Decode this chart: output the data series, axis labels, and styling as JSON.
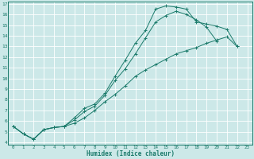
{
  "xlabel": "Humidex (Indice chaleur)",
  "bg_color": "#cce8e8",
  "grid_color": "#ffffff",
  "line_color": "#1a7a6a",
  "xlim": [
    -0.5,
    23.5
  ],
  "ylim": [
    3.8,
    17.2
  ],
  "yticks": [
    4,
    5,
    6,
    7,
    8,
    9,
    10,
    11,
    12,
    13,
    14,
    15,
    16,
    17
  ],
  "xticks": [
    0,
    1,
    2,
    3,
    4,
    5,
    6,
    7,
    8,
    9,
    10,
    11,
    12,
    13,
    14,
    15,
    16,
    17,
    18,
    19,
    20,
    21,
    22,
    23
  ],
  "line1_x": [
    0,
    1,
    2,
    3,
    4,
    5,
    6,
    7,
    8,
    9,
    10,
    11,
    12,
    13,
    14,
    15,
    16,
    17,
    18,
    19,
    20,
    21,
    22
  ],
  "line1_y": [
    5.5,
    4.8,
    4.3,
    5.2,
    5.4,
    5.5,
    6.3,
    7.2,
    7.6,
    8.6,
    10.2,
    11.7,
    13.3,
    14.5,
    16.5,
    16.8,
    16.7,
    16.5,
    15.3,
    15.1,
    14.9,
    14.6,
    13.0
  ],
  "line2_x": [
    0,
    1,
    2,
    3,
    4,
    5,
    6,
    7,
    8,
    9,
    10,
    11,
    12,
    13,
    14,
    15,
    16,
    17,
    18,
    19,
    20
  ],
  "line2_y": [
    5.5,
    4.8,
    4.3,
    5.2,
    5.4,
    5.5,
    6.1,
    6.9,
    7.4,
    8.4,
    9.8,
    10.9,
    12.3,
    13.8,
    15.3,
    15.9,
    16.3,
    16.0,
    15.5,
    14.8,
    13.5
  ],
  "line3_x": [
    0,
    1,
    2,
    3,
    4,
    5,
    6,
    7,
    8,
    9,
    10,
    11,
    12,
    13,
    14,
    15,
    16,
    17,
    18,
    19,
    20,
    21,
    22
  ],
  "line3_y": [
    5.5,
    4.8,
    4.3,
    5.2,
    5.4,
    5.5,
    5.8,
    6.3,
    7.0,
    7.8,
    8.5,
    9.3,
    10.2,
    10.8,
    11.3,
    11.8,
    12.3,
    12.6,
    12.9,
    13.3,
    13.6,
    13.9,
    13.0
  ]
}
